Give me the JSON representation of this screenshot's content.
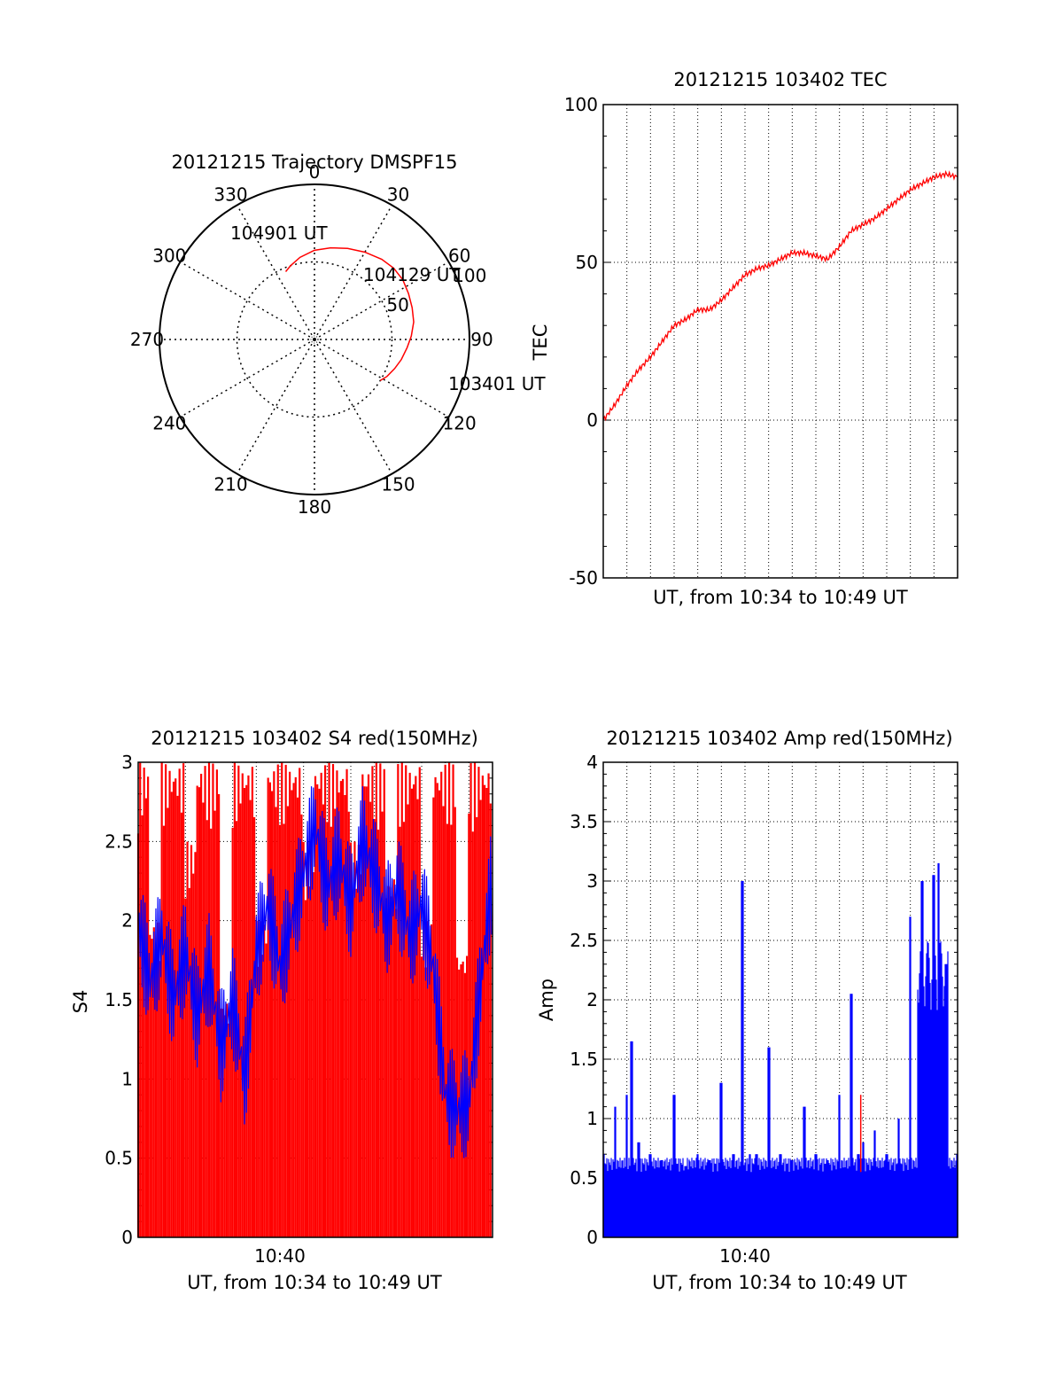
{
  "colors": {
    "primary": "#ff0000",
    "secondary": "#0000ff",
    "axis": "#000000",
    "grid": "#000000"
  },
  "chart_data": [
    {
      "type": "polar",
      "title": "20121215 Trajectory DMSPF15",
      "angle_labels": [
        "0",
        "30",
        "60",
        "90",
        "120",
        "150",
        "180",
        "210",
        "240",
        "270",
        "300",
        "330"
      ],
      "radial_labels": [
        "50",
        "100"
      ],
      "rlim": [
        0,
        100
      ],
      "grid": true,
      "series": [
        {
          "type": "line",
          "color": "#ff0000",
          "azimuth_deg": [
            122,
            117,
            110,
            103,
            95,
            88,
            80,
            72,
            64,
            56,
            48,
            40,
            30,
            20,
            10,
            0,
            -10,
            -18,
            -23
          ],
          "elevation": [
            70,
            68,
            66,
            64,
            62,
            60,
            58,
            57,
            56,
            55,
            55,
            56,
            58,
            60,
            62,
            64,
            67,
            70,
            72
          ]
        }
      ],
      "annotations": [
        {
          "text": "104901 UT",
          "azimuth_deg": -23,
          "elevation": 72
        },
        {
          "text": "104129 UT",
          "azimuth_deg": 55,
          "elevation": 53
        },
        {
          "text": "103401 UT",
          "azimuth_deg": 122,
          "elevation": 70
        }
      ]
    },
    {
      "type": "line",
      "title": "20121215 103402 TEC",
      "xlabel": "UT, from 10:34 to 10:49 UT",
      "ylabel": "TEC",
      "xlim": [
        0,
        15
      ],
      "ylim": [
        -50,
        100
      ],
      "y_ticks": [
        -50,
        0,
        50,
        100
      ],
      "grid": true,
      "series": [
        {
          "type": "line",
          "color": "#ff0000",
          "x": [
            0,
            0.5,
            1,
            1.5,
            2,
            2.5,
            3,
            3.5,
            4,
            4.5,
            5,
            5.5,
            6,
            6.5,
            7,
            7.5,
            8,
            8.5,
            9,
            9.5,
            10,
            10.5,
            11,
            11.5,
            12,
            12.5,
            13,
            13.5,
            14,
            14.5,
            15
          ],
          "y": [
            0,
            5,
            11,
            16,
            20,
            25,
            30,
            32,
            35,
            35,
            38,
            42,
            46,
            48,
            49,
            51,
            53,
            53,
            52,
            51,
            55,
            60,
            62,
            64,
            67,
            70,
            73,
            75,
            77,
            78,
            77
          ]
        }
      ]
    },
    {
      "type": "area",
      "title": "20121215 103402 S4 red(150MHz)",
      "xlabel": "UT, from 10:34 to 10:49 UT",
      "ylabel": "S4",
      "xlim": [
        0,
        15
      ],
      "ylim": [
        0,
        3
      ],
      "x_ticks": [
        {
          "x": 6,
          "label": "10:40"
        }
      ],
      "y_ticks": [
        0,
        0.5,
        1,
        1.5,
        2,
        2.5,
        3
      ],
      "grid": true,
      "series": [
        {
          "name": "",
          "type": "vertical-lines",
          "color": "#ff0000",
          "x": [
            0,
            0.5,
            1,
            1.5,
            2,
            2.5,
            3,
            3.5,
            4,
            4.5,
            5,
            5.5,
            6,
            6.5,
            7,
            7.5,
            8,
            8.5,
            9,
            9.5,
            10,
            10.5,
            11,
            11.5,
            12,
            12.5,
            13,
            13.5,
            14,
            14.5,
            15
          ],
          "y": [
            3,
            2,
            3,
            3,
            2.5,
            3,
            3,
            1.5,
            3,
            3,
            2,
            3,
            3,
            3,
            2.5,
            3,
            3,
            3,
            2.5,
            3,
            3,
            2.3,
            3,
            3,
            2,
            3,
            3,
            1.8,
            3,
            3,
            3
          ]
        },
        {
          "name": "",
          "type": "line",
          "color": "#0000ff",
          "x": [
            0,
            0.5,
            1,
            1.5,
            2,
            2.5,
            3,
            3.5,
            4,
            4.5,
            5,
            5.5,
            6,
            6.5,
            7,
            7.5,
            8,
            8.5,
            9,
            9.5,
            10,
            10.5,
            11,
            11.5,
            12,
            12.5,
            13,
            13.5,
            14,
            14.5,
            15
          ],
          "y": [
            2.0,
            1.6,
            1.9,
            1.5,
            1.8,
            1.4,
            1.7,
            1.2,
            1.5,
            1.0,
            1.8,
            2.1,
            1.7,
            2.0,
            2.3,
            2.6,
            2.2,
            2.4,
            2.1,
            2.5,
            2.3,
            2.0,
            2.2,
            1.9,
            2.1,
            1.7,
            0.9,
            0.8,
            0.85,
            1.6,
            2.3
          ]
        }
      ]
    },
    {
      "type": "area",
      "title": "20121215 103402 Amp red(150MHz)",
      "xlabel": "UT, from 10:34 to 10:49 UT",
      "ylabel": "Amp",
      "xlim": [
        0,
        15
      ],
      "ylim": [
        0,
        4
      ],
      "x_ticks": [
        {
          "x": 6,
          "label": "10:40"
        }
      ],
      "y_ticks": [
        0,
        0.5,
        1,
        1.5,
        2,
        2.5,
        3,
        3.5,
        4
      ],
      "grid": true,
      "series": [
        {
          "name": "",
          "type": "vertical-lines",
          "color": "#0000ff",
          "x": [
            0,
            0.5,
            1,
            1.2,
            1.5,
            2,
            2.5,
            3,
            3.5,
            4,
            4.5,
            5,
            5.5,
            5.9,
            6.2,
            6.5,
            7,
            7.5,
            8,
            8.5,
            9,
            9.5,
            10,
            10.5,
            10.8,
            11,
            11.5,
            12,
            12.5,
            13,
            13.5,
            14,
            14.2,
            14.5,
            15
          ],
          "y": [
            0.7,
            1.1,
            1.2,
            1.65,
            0.8,
            0.7,
            0.65,
            1.2,
            0.6,
            0.7,
            0.65,
            1.3,
            0.7,
            3.0,
            0.7,
            0.7,
            1.6,
            0.7,
            0.65,
            1.1,
            0.7,
            0.65,
            1.2,
            2.05,
            0.7,
            0.8,
            0.9,
            0.7,
            1.0,
            2.7,
            3.0,
            3.05,
            3.15,
            2.3,
            0.7
          ]
        },
        {
          "name": "",
          "type": "vertical-lines",
          "color": "#ff0000",
          "x": [
            10.9
          ],
          "y": [
            1.2
          ]
        }
      ]
    }
  ]
}
